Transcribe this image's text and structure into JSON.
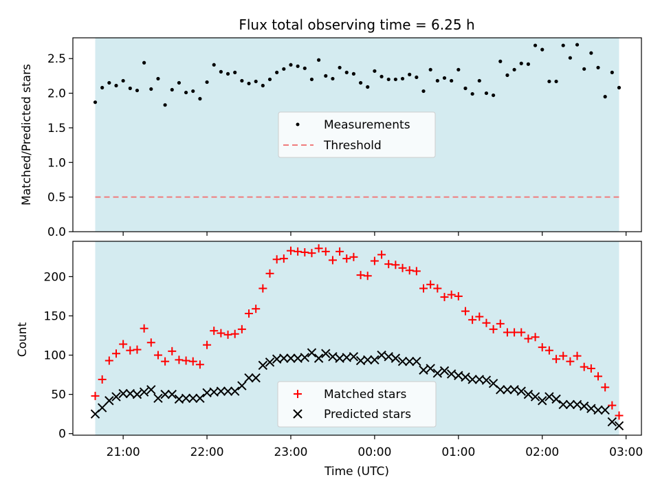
{
  "chart_data": [
    {
      "type": "scatter",
      "title": "Flux total observing time = 6.25 h",
      "xlabel": "",
      "ylabel": "Matched/Predicted stars",
      "ylim": [
        0,
        2.8
      ],
      "xlim": [
        "20:24",
        "03:11"
      ],
      "yticks": [
        "0.0",
        "0.5",
        "1.0",
        "1.5",
        "2.0",
        "2.5"
      ],
      "grid": false,
      "shaded_interval": [
        "20:40",
        "02:55"
      ],
      "shade_color": "#d4ebf0",
      "legend_position": "center",
      "legend": [
        "Measurements",
        "Threshold"
      ],
      "threshold": 0.5,
      "threshold_color": "#f07b7b",
      "series": [
        {
          "name": "Measurements",
          "marker": "dot",
          "color": "#000000",
          "x": [
            "20:40",
            "20:45",
            "20:50",
            "20:55",
            "21:00",
            "21:05",
            "21:10",
            "21:15",
            "21:20",
            "21:25",
            "21:30",
            "21:35",
            "21:40",
            "21:45",
            "21:50",
            "21:55",
            "22:00",
            "22:05",
            "22:10",
            "22:15",
            "22:20",
            "22:25",
            "22:30",
            "22:35",
            "22:40",
            "22:45",
            "22:50",
            "22:55",
            "23:00",
            "23:05",
            "23:10",
            "23:15",
            "23:20",
            "23:25",
            "23:30",
            "23:35",
            "23:40",
            "23:45",
            "23:50",
            "23:55",
            "00:00",
            "00:05",
            "00:10",
            "00:15",
            "00:20",
            "00:25",
            "00:30",
            "00:35",
            "00:40",
            "00:45",
            "00:50",
            "00:55",
            "01:00",
            "01:05",
            "01:10",
            "01:15",
            "01:20",
            "01:25",
            "01:30",
            "01:35",
            "01:40",
            "01:45",
            "01:50",
            "01:55",
            "02:00",
            "02:05",
            "02:10",
            "02:15",
            "02:20",
            "02:25",
            "02:30",
            "02:35",
            "02:40",
            "02:45",
            "02:50",
            "02:55"
          ],
          "y": [
            1.87,
            2.08,
            2.15,
            2.11,
            2.18,
            2.07,
            2.04,
            2.44,
            2.06,
            2.21,
            1.83,
            2.05,
            2.15,
            2.01,
            2.03,
            1.92,
            2.16,
            2.41,
            2.31,
            2.28,
            2.3,
            2.18,
            2.14,
            2.17,
            2.11,
            2.2,
            2.3,
            2.35,
            2.41,
            2.39,
            2.36,
            2.2,
            2.48,
            2.25,
            2.21,
            2.37,
            2.3,
            2.28,
            2.15,
            2.09,
            2.32,
            2.24,
            2.2,
            2.2,
            2.21,
            2.27,
            2.23,
            2.03,
            2.34,
            2.18,
            2.22,
            2.18,
            2.34,
            2.07,
            1.99,
            2.18,
            2.0,
            1.97,
            2.46,
            2.26,
            2.34,
            2.43,
            2.42,
            2.69,
            2.63,
            2.17,
            2.17,
            2.69,
            2.51,
            2.7,
            2.35,
            2.58,
            2.37,
            1.95,
            2.3,
            2.08
          ]
        }
      ]
    },
    {
      "type": "scatter",
      "title": "",
      "xlabel": "Time (UTC)",
      "ylabel": "Count",
      "ylim": [
        -2,
        245
      ],
      "xlim": [
        "20:24",
        "03:11"
      ],
      "xticks": [
        "21:00",
        "22:00",
        "23:00",
        "00:00",
        "01:00",
        "02:00",
        "03:00"
      ],
      "yticks": [
        "0",
        "50",
        "100",
        "150",
        "200"
      ],
      "grid": false,
      "shaded_interval": [
        "20:40",
        "02:55"
      ],
      "shade_color": "#d4ebf0",
      "legend_position": "lower center",
      "legend": [
        "Matched stars",
        "Predicted stars"
      ],
      "series": [
        {
          "name": "Matched stars",
          "marker": "plus",
          "color": "#ff0000",
          "x": [
            "20:40",
            "20:45",
            "20:50",
            "20:55",
            "21:00",
            "21:05",
            "21:10",
            "21:15",
            "21:20",
            "21:25",
            "21:30",
            "21:35",
            "21:40",
            "21:45",
            "21:50",
            "21:55",
            "22:00",
            "22:05",
            "22:10",
            "22:15",
            "22:20",
            "22:25",
            "22:30",
            "22:35",
            "22:40",
            "22:45",
            "22:50",
            "22:55",
            "23:00",
            "23:05",
            "23:10",
            "23:15",
            "23:20",
            "23:25",
            "23:30",
            "23:35",
            "23:40",
            "23:45",
            "23:50",
            "23:55",
            "00:00",
            "00:05",
            "00:10",
            "00:15",
            "00:20",
            "00:25",
            "00:30",
            "00:35",
            "00:40",
            "00:45",
            "00:50",
            "00:55",
            "01:00",
            "01:05",
            "01:10",
            "01:15",
            "01:20",
            "01:25",
            "01:30",
            "01:35",
            "01:40",
            "01:45",
            "01:50",
            "01:55",
            "02:00",
            "02:05",
            "02:10",
            "02:15",
            "02:20",
            "02:25",
            "02:30",
            "02:35",
            "02:40",
            "02:45",
            "02:50",
            "02:55"
          ],
          "y": [
            48,
            69,
            93,
            102,
            114,
            106,
            107,
            134,
            116,
            100,
            92,
            105,
            94,
            93,
            92,
            88,
            113,
            131,
            128,
            126,
            127,
            133,
            153,
            159,
            185,
            204,
            222,
            223,
            233,
            232,
            231,
            230,
            236,
            232,
            221,
            232,
            223,
            225,
            202,
            201,
            220,
            228,
            216,
            215,
            211,
            208,
            207,
            185,
            190,
            185,
            174,
            177,
            175,
            156,
            145,
            149,
            141,
            133,
            140,
            129,
            129,
            129,
            121,
            123,
            110,
            106,
            95,
            99,
            92,
            99,
            85,
            83,
            73,
            59,
            36,
            23
          ]
        },
        {
          "name": "Predicted stars",
          "marker": "x",
          "color": "#000000",
          "x": [
            "20:40",
            "20:45",
            "20:50",
            "20:55",
            "21:00",
            "21:05",
            "21:10",
            "21:15",
            "21:20",
            "21:25",
            "21:30",
            "21:35",
            "21:40",
            "21:45",
            "21:50",
            "21:55",
            "22:00",
            "22:05",
            "22:10",
            "22:15",
            "22:20",
            "22:25",
            "22:30",
            "22:35",
            "22:40",
            "22:45",
            "22:50",
            "22:55",
            "23:00",
            "23:05",
            "23:10",
            "23:15",
            "23:20",
            "23:25",
            "23:30",
            "23:35",
            "23:40",
            "23:45",
            "23:50",
            "23:55",
            "00:00",
            "00:05",
            "00:10",
            "00:15",
            "00:20",
            "00:25",
            "00:30",
            "00:35",
            "00:40",
            "00:45",
            "00:50",
            "00:55",
            "01:00",
            "01:05",
            "01:10",
            "01:15",
            "01:20",
            "01:25",
            "01:30",
            "01:35",
            "01:40",
            "01:45",
            "01:50",
            "01:55",
            "02:00",
            "02:05",
            "02:10",
            "02:15",
            "02:20",
            "02:25",
            "02:30",
            "02:35",
            "02:40",
            "02:45",
            "02:50",
            "02:55"
          ],
          "y": [
            25,
            33,
            42,
            47,
            51,
            51,
            50,
            53,
            56,
            45,
            50,
            50,
            44,
            45,
            45,
            45,
            52,
            53,
            54,
            54,
            54,
            61,
            71,
            71,
            87,
            91,
            95,
            96,
            96,
            96,
            97,
            103,
            96,
            102,
            98,
            96,
            97,
            98,
            93,
            94,
            94,
            100,
            98,
            96,
            92,
            92,
            92,
            81,
            83,
            77,
            80,
            76,
            74,
            72,
            69,
            69,
            68,
            64,
            56,
            56,
            56,
            54,
            50,
            47,
            42,
            47,
            44,
            37,
            37,
            37,
            35,
            32,
            30,
            30,
            15,
            10
          ]
        }
      ]
    }
  ]
}
